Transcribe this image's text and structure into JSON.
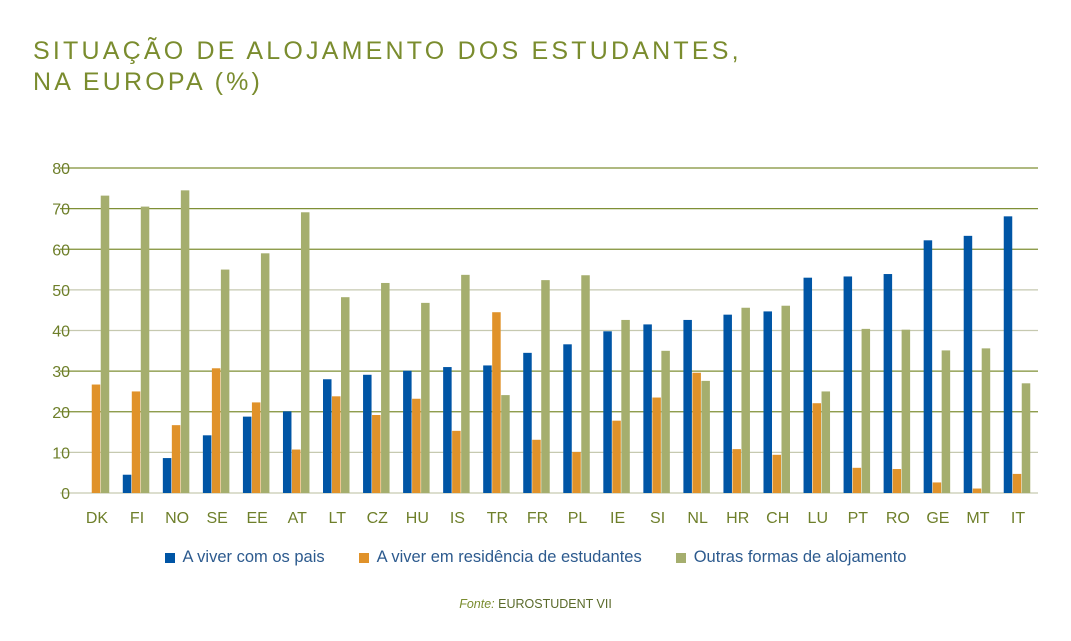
{
  "chart_data": {
    "type": "bar",
    "title_lines": [
      "SITUAÇÃO DE ALOJAMENTO DOS ESTUDANTES,",
      "NA EUROPA (%)"
    ],
    "categories": [
      "DK",
      "FI",
      "NO",
      "SE",
      "EE",
      "AT",
      "LT",
      "CZ",
      "HU",
      "IS",
      "TR",
      "FR",
      "PL",
      "IE",
      "SI",
      "NL",
      "HR",
      "CH",
      "LU",
      "PT",
      "RO",
      "GE",
      "MT",
      "IT"
    ],
    "series": [
      {
        "name": "A viver com os pais",
        "color": "#0055a5",
        "values": [
          0,
          4.5,
          8.6,
          14.2,
          18.8,
          20.1,
          28.0,
          29.1,
          30.1,
          31.0,
          31.4,
          34.5,
          36.6,
          39.8,
          41.5,
          42.6,
          43.9,
          44.7,
          53.0,
          53.3,
          53.9,
          62.2,
          63.3,
          68.1
        ]
      },
      {
        "name": "A viver em residência de estudantes",
        "color": "#e0922a",
        "values": [
          26.7,
          25.0,
          16.7,
          30.7,
          22.3,
          10.7,
          23.8,
          19.2,
          23.2,
          15.3,
          44.5,
          13.1,
          10.1,
          17.8,
          23.5,
          29.6,
          10.8,
          9.4,
          22.1,
          6.2,
          5.9,
          2.6,
          1.1,
          4.7
        ]
      },
      {
        "name": "Outras formas de alojamento",
        "color": "#a5ae6e",
        "values": [
          73.2,
          70.5,
          74.5,
          55.0,
          59.0,
          69.1,
          48.2,
          51.7,
          46.8,
          53.7,
          24.1,
          52.4,
          53.6,
          42.6,
          35.0,
          27.6,
          45.6,
          46.1,
          25.0,
          40.4,
          40.2,
          35.1,
          35.6,
          27.0
        ]
      }
    ],
    "yticks": [
      0,
      10,
      20,
      30,
      40,
      50,
      60,
      70,
      80
    ],
    "ylim": [
      0,
      80
    ],
    "xlabel": "",
    "ylabel": "",
    "grid": true,
    "legend_position": "bottom",
    "title_color": "#7a8c2e"
  },
  "source": {
    "label": "Fonte:",
    "text": "EUROSTUDENT VII"
  }
}
